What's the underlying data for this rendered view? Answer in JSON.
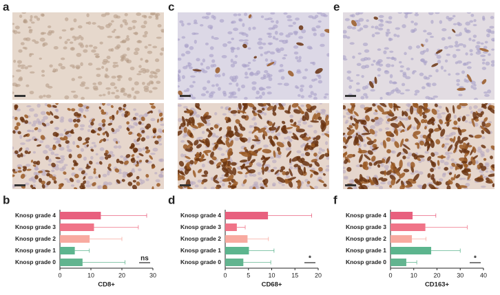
{
  "panel_labels": [
    "a",
    "c",
    "e",
    "b",
    "d",
    "f"
  ],
  "chart_data": [
    {
      "type": "bar",
      "orientation": "horizontal",
      "x_label": "CD8+",
      "categories": [
        "Knosp grade 4",
        "Knosp grade 3",
        "Knosp grade 2",
        "Knosp grade 1",
        "Knosp grade 0"
      ],
      "values": [
        13.2,
        11,
        9.6,
        4.8,
        7.3
      ],
      "errors": [
        14.8,
        14.3,
        10.4,
        4.7,
        13.7
      ],
      "colors": [
        "#e8607e",
        "#f07488",
        "#f8aaa0",
        "#5cb58e",
        "#62b48f"
      ],
      "xlim": [
        0,
        30
      ],
      "xticks": [
        0,
        10,
        20,
        30
      ],
      "annotation": "ns"
    },
    {
      "type": "bar",
      "orientation": "horizontal",
      "x_label": "CD68+",
      "categories": [
        "Knosp grade 4",
        "Knosp grade 3",
        "Knosp grade 2",
        "Knosp grade 1",
        "Knosp grade 0"
      ],
      "values": [
        9.2,
        2.5,
        4.8,
        5.1,
        3.9
      ],
      "errors": [
        9.4,
        1.8,
        4.5,
        5.4,
        5.9
      ],
      "colors": [
        "#e8607e",
        "#f07488",
        "#f8aaa0",
        "#5cb58e",
        "#62b48f"
      ],
      "xlim": [
        0,
        20
      ],
      "xticks": [
        0,
        5,
        10,
        15,
        20
      ],
      "annotation": "*"
    },
    {
      "type": "bar",
      "orientation": "horizontal",
      "x_label": "CD163+",
      "categories": [
        "Knosp grade 4",
        "Knosp grade 3",
        "Knosp grade 2",
        "Knosp grade 1",
        "Knosp grade 0"
      ],
      "values": [
        9.5,
        15,
        9.2,
        17.5,
        6.8
      ],
      "errors": [
        10,
        18,
        6.1,
        12.5,
        4.5
      ],
      "colors": [
        "#e8607e",
        "#f07488",
        "#f8aaa0",
        "#5cb58e",
        "#62b48f"
      ],
      "xlim": [
        0,
        40
      ],
      "xticks": [
        0,
        10,
        20,
        30,
        40
      ],
      "annotation": "*"
    }
  ]
}
